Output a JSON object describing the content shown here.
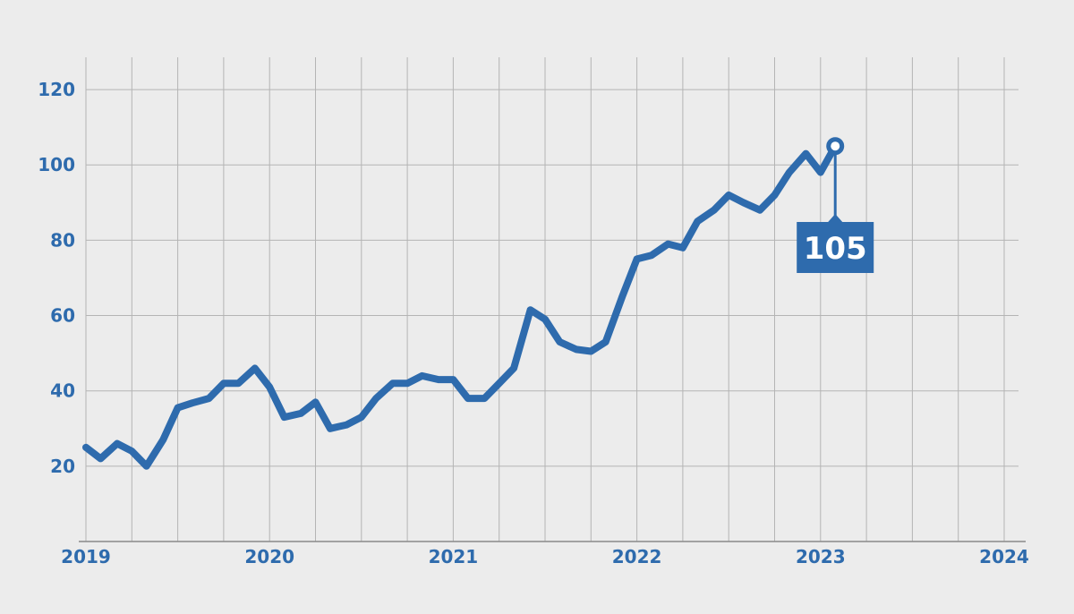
{
  "chart_data": {
    "type": "line",
    "title": "",
    "xlabel": "",
    "ylabel": "",
    "xlim": [
      2019.0,
      2024.0
    ],
    "ylim": [
      0,
      130
    ],
    "x_ticks": [
      "2019",
      "2020",
      "2021",
      "2022",
      "2023",
      "2024"
    ],
    "y_ticks": [
      20,
      40,
      60,
      80,
      100,
      120
    ],
    "grid": true,
    "series": [
      {
        "color": "#2e6bad",
        "points": [
          [
            2019.0,
            25
          ],
          [
            2019.08,
            22
          ],
          [
            2019.17,
            26
          ],
          [
            2019.25,
            24
          ],
          [
            2019.33,
            20
          ],
          [
            2019.42,
            27
          ],
          [
            2019.5,
            35.5
          ],
          [
            2019.58,
            36.8
          ],
          [
            2019.67,
            38
          ],
          [
            2019.75,
            42
          ],
          [
            2019.83,
            42
          ],
          [
            2019.92,
            46
          ],
          [
            2020.0,
            41
          ],
          [
            2020.08,
            33
          ],
          [
            2020.17,
            34
          ],
          [
            2020.25,
            37
          ],
          [
            2020.33,
            30
          ],
          [
            2020.42,
            31
          ],
          [
            2020.5,
            33
          ],
          [
            2020.58,
            38
          ],
          [
            2020.67,
            42
          ],
          [
            2020.75,
            42
          ],
          [
            2020.83,
            44
          ],
          [
            2020.92,
            43
          ],
          [
            2021.0,
            43
          ],
          [
            2021.08,
            38
          ],
          [
            2021.17,
            38
          ],
          [
            2021.25,
            42
          ],
          [
            2021.33,
            46
          ],
          [
            2021.42,
            61.5
          ],
          [
            2021.5,
            59
          ],
          [
            2021.58,
            53
          ],
          [
            2021.67,
            51
          ],
          [
            2021.75,
            50.5
          ],
          [
            2021.83,
            53
          ],
          [
            2021.92,
            65
          ],
          [
            2022.0,
            75
          ],
          [
            2022.08,
            76
          ],
          [
            2022.17,
            79
          ],
          [
            2022.25,
            78
          ],
          [
            2022.33,
            85
          ],
          [
            2022.42,
            88
          ],
          [
            2022.5,
            92
          ],
          [
            2022.58,
            90
          ],
          [
            2022.67,
            88
          ],
          [
            2022.75,
            92
          ],
          [
            2022.83,
            98
          ],
          [
            2022.92,
            103
          ],
          [
            2023.0,
            98
          ],
          [
            2023.08,
            105
          ]
        ]
      }
    ],
    "callout": {
      "x": 2023.08,
      "y": 105,
      "label": "105",
      "color": "#2e6bad"
    }
  },
  "colors": {
    "background": "#ececec",
    "line": "#2e6bad",
    "grid": "#b4b4b4",
    "axis": "#8a8a8a",
    "labels": "#2e6bad"
  }
}
